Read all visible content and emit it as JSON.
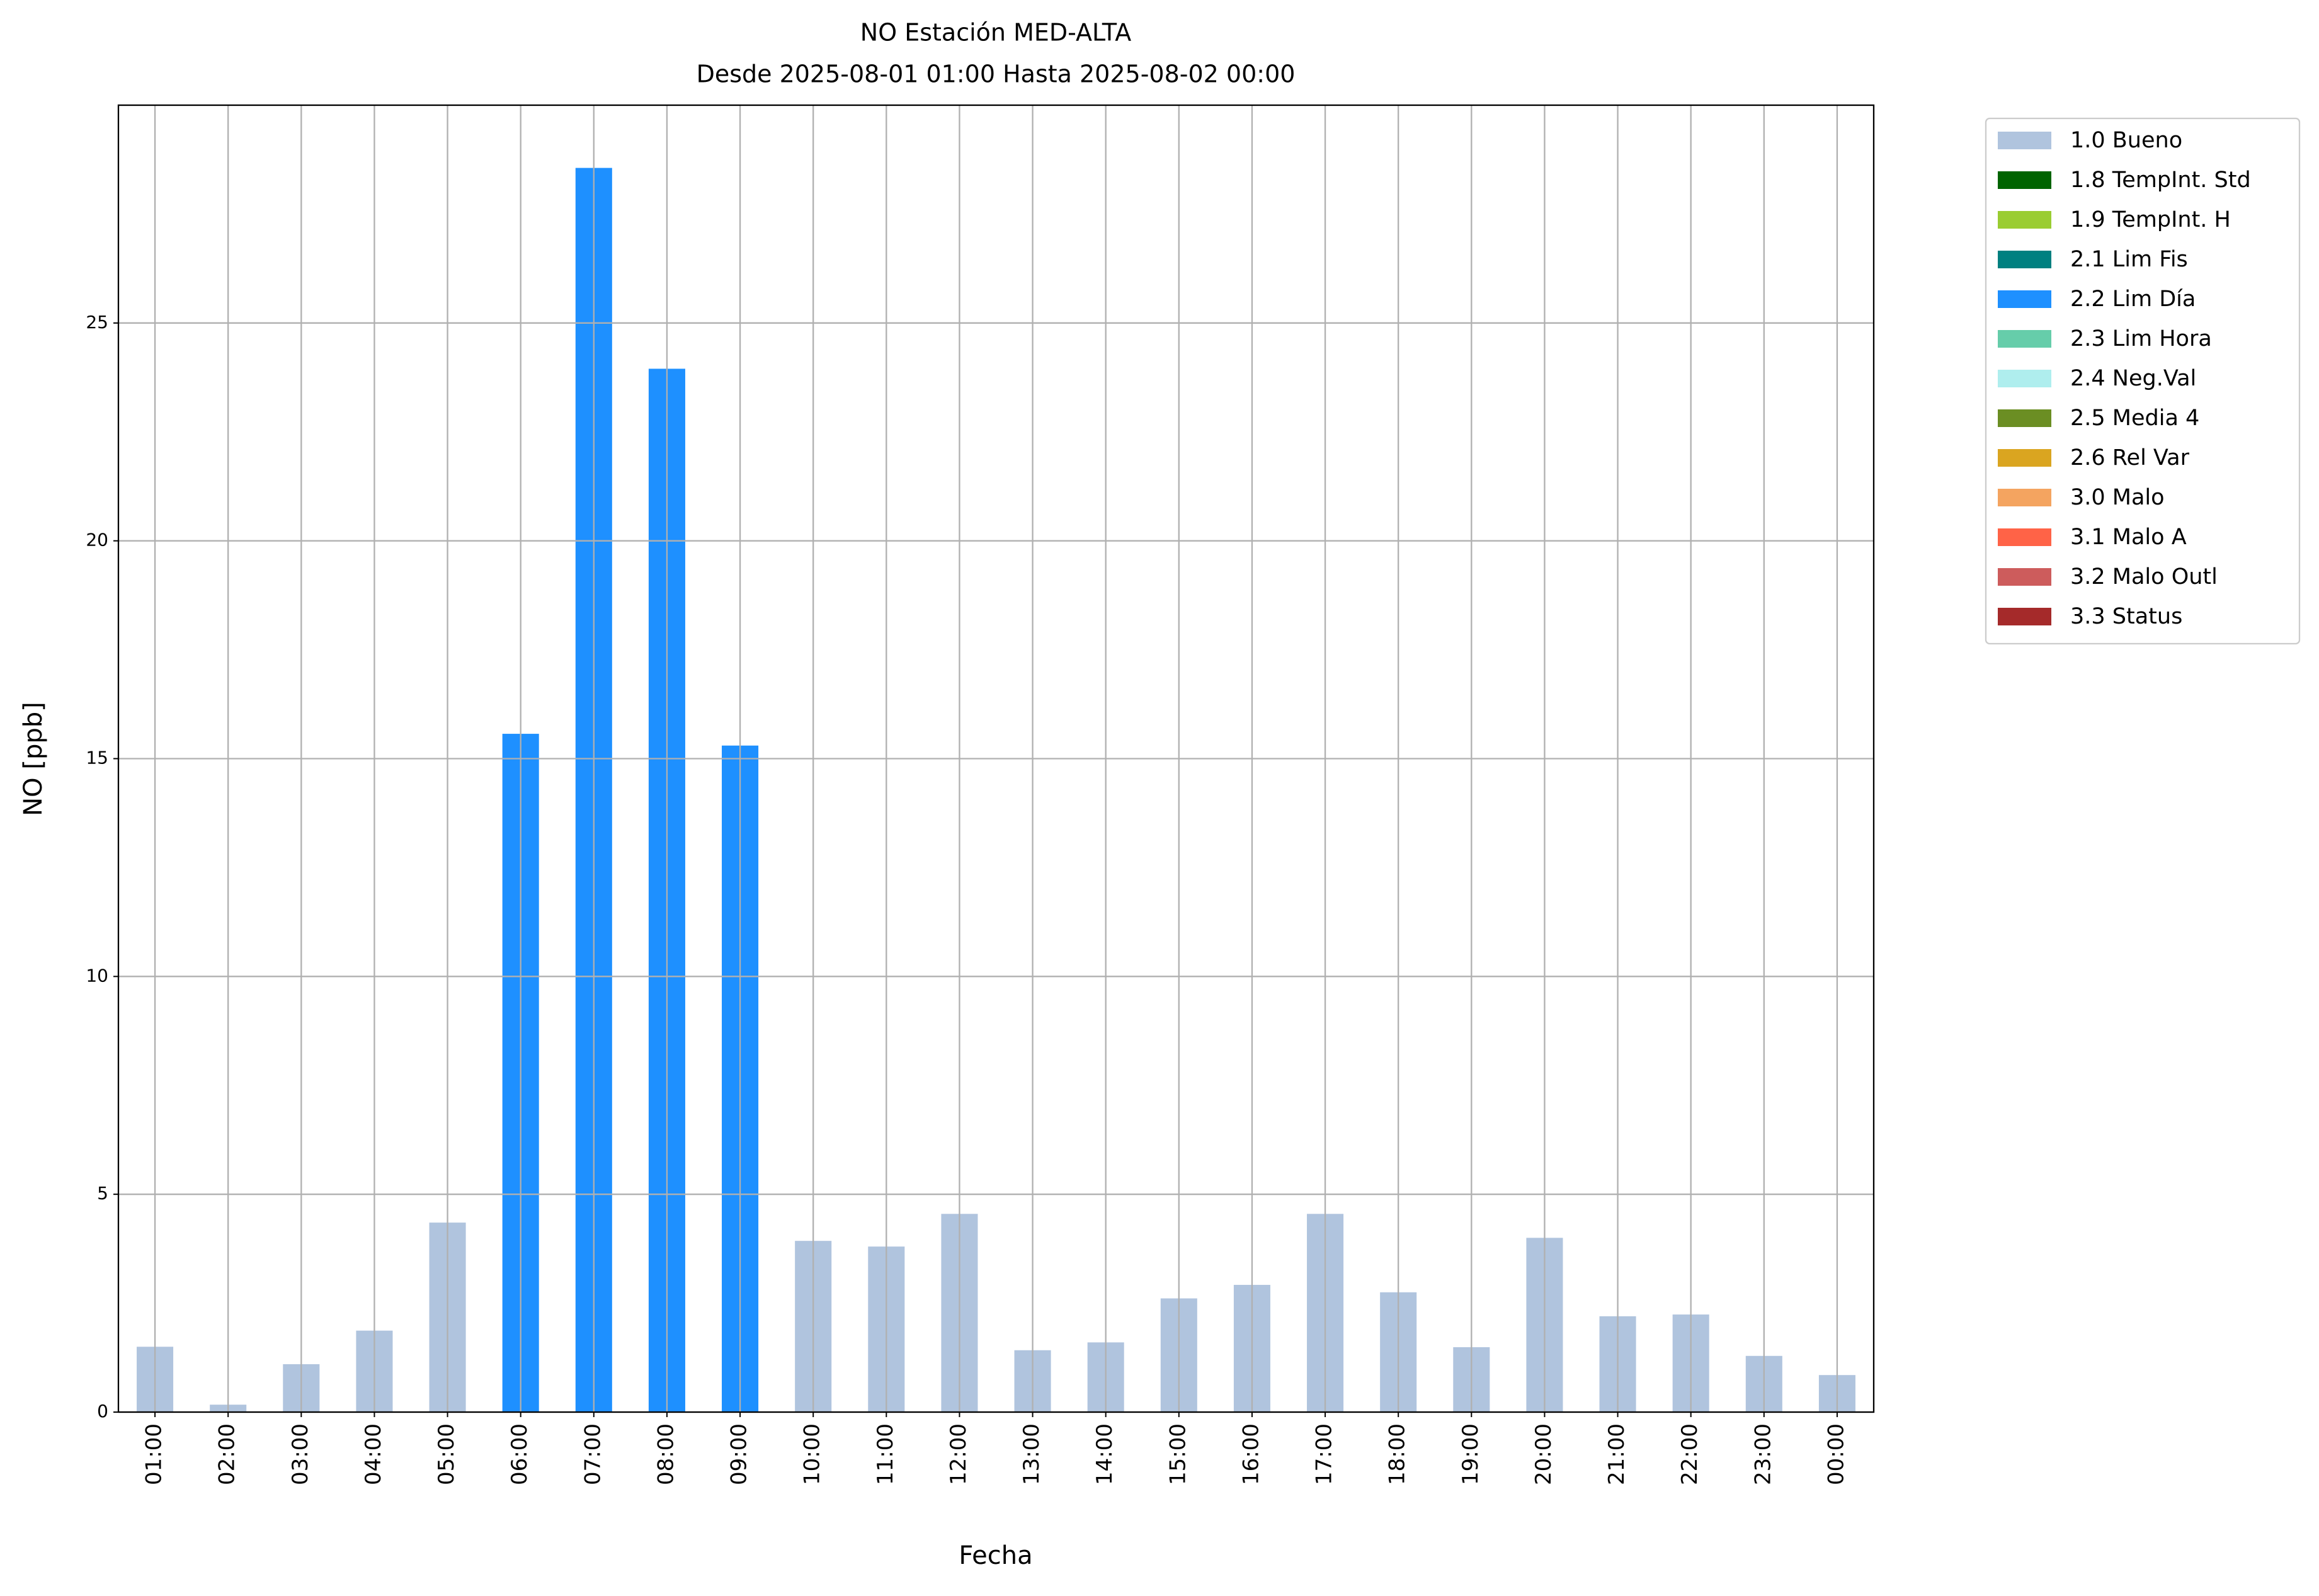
{
  "chart_data": {
    "type": "stacked-bar",
    "title": "NO Estación MED-ALTA",
    "subtitle": "Desde 2025-08-01 01:00 Hasta 2025-08-02 00:00",
    "x_label": "Fecha",
    "y_label": "NO [ppb]",
    "categories": [
      "01:00",
      "02:00",
      "03:00",
      "04:00",
      "05:00",
      "06:00",
      "07:00",
      "08:00",
      "09:00",
      "10:00",
      "11:00",
      "12:00",
      "13:00",
      "14:00",
      "15:00",
      "16:00",
      "17:00",
      "18:00",
      "19:00",
      "20:00",
      "21:00",
      "22:00",
      "23:00",
      "00:00"
    ],
    "series": [
      {
        "name": "1.0 Bueno",
        "color": "#b0c4de",
        "values": [
          1.5,
          0.17,
          1.1,
          1.87,
          4.35,
          null,
          null,
          null,
          null,
          3.93,
          3.8,
          4.55,
          1.42,
          1.6,
          2.61,
          2.92,
          4.55,
          2.75,
          1.49,
          4.0,
          2.2,
          2.24,
          1.29,
          0.85
        ]
      },
      {
        "name": "1.8 TempInt. Std",
        "color": "#006400",
        "values": [
          null,
          null,
          null,
          null,
          null,
          null,
          null,
          null,
          null,
          null,
          null,
          null,
          null,
          null,
          null,
          null,
          null,
          null,
          null,
          null,
          null,
          null,
          null,
          null
        ]
      },
      {
        "name": "1.9 TempInt. H",
        "color": "#9acd32",
        "values": [
          null,
          null,
          null,
          null,
          null,
          null,
          null,
          null,
          null,
          null,
          null,
          null,
          null,
          null,
          null,
          null,
          null,
          null,
          null,
          null,
          null,
          null,
          null,
          null
        ]
      },
      {
        "name": "2.1 Lim Fis",
        "color": "#008080",
        "values": [
          null,
          null,
          null,
          null,
          null,
          null,
          null,
          null,
          null,
          null,
          null,
          null,
          null,
          null,
          null,
          null,
          null,
          null,
          null,
          null,
          null,
          null,
          null,
          null
        ]
      },
      {
        "name": "2.2 Lim Día",
        "color": "#1e90ff",
        "values": [
          null,
          null,
          null,
          null,
          null,
          15.57,
          28.56,
          23.95,
          15.3,
          null,
          null,
          null,
          null,
          null,
          null,
          null,
          null,
          null,
          null,
          null,
          null,
          null,
          null,
          null
        ]
      },
      {
        "name": "2.3 Lim Hora",
        "color": "#66cdaa",
        "values": [
          null,
          null,
          null,
          null,
          null,
          null,
          null,
          null,
          null,
          null,
          null,
          null,
          null,
          null,
          null,
          null,
          null,
          null,
          null,
          null,
          null,
          null,
          null,
          null
        ]
      },
      {
        "name": "2.4 Neg.Val",
        "color": "#afeeee",
        "values": [
          null,
          null,
          null,
          null,
          null,
          null,
          null,
          null,
          null,
          null,
          null,
          null,
          null,
          null,
          null,
          null,
          null,
          null,
          null,
          null,
          null,
          null,
          null,
          null
        ]
      },
      {
        "name": "2.5 Media 4",
        "color": "#6b8e23",
        "values": [
          null,
          null,
          null,
          null,
          null,
          null,
          null,
          null,
          null,
          null,
          null,
          null,
          null,
          null,
          null,
          null,
          null,
          null,
          null,
          null,
          null,
          null,
          null,
          null
        ]
      },
      {
        "name": "2.6 Rel Var",
        "color": "#daa520",
        "values": [
          null,
          null,
          null,
          null,
          null,
          null,
          null,
          null,
          null,
          null,
          null,
          null,
          null,
          null,
          null,
          null,
          null,
          null,
          null,
          null,
          null,
          null,
          null,
          null
        ]
      },
      {
        "name": "3.0 Malo",
        "color": "#f4a460",
        "values": [
          null,
          null,
          null,
          null,
          null,
          null,
          null,
          null,
          null,
          null,
          null,
          null,
          null,
          null,
          null,
          null,
          null,
          null,
          null,
          null,
          null,
          null,
          null,
          null
        ]
      },
      {
        "name": "3.1 Malo A",
        "color": "#ff6347",
        "values": [
          null,
          null,
          null,
          null,
          null,
          null,
          null,
          null,
          null,
          null,
          null,
          null,
          null,
          null,
          null,
          null,
          null,
          null,
          null,
          null,
          null,
          null,
          null,
          null
        ]
      },
      {
        "name": "3.2 Malo Outl",
        "color": "#cd5c5c",
        "values": [
          null,
          null,
          null,
          null,
          null,
          null,
          null,
          null,
          null,
          null,
          null,
          null,
          null,
          null,
          null,
          null,
          null,
          null,
          null,
          null,
          null,
          null,
          null,
          null
        ]
      },
      {
        "name": "3.3 Status",
        "color": "#a52a2a",
        "values": [
          null,
          null,
          null,
          null,
          null,
          null,
          null,
          null,
          null,
          null,
          null,
          null,
          null,
          null,
          null,
          null,
          null,
          null,
          null,
          null,
          null,
          null,
          null,
          null
        ]
      }
    ],
    "ylim": [
      0,
      30
    ],
    "yticks": [
      0,
      5,
      10,
      15,
      20,
      25
    ],
    "grid": true,
    "legend": "outside-right"
  }
}
